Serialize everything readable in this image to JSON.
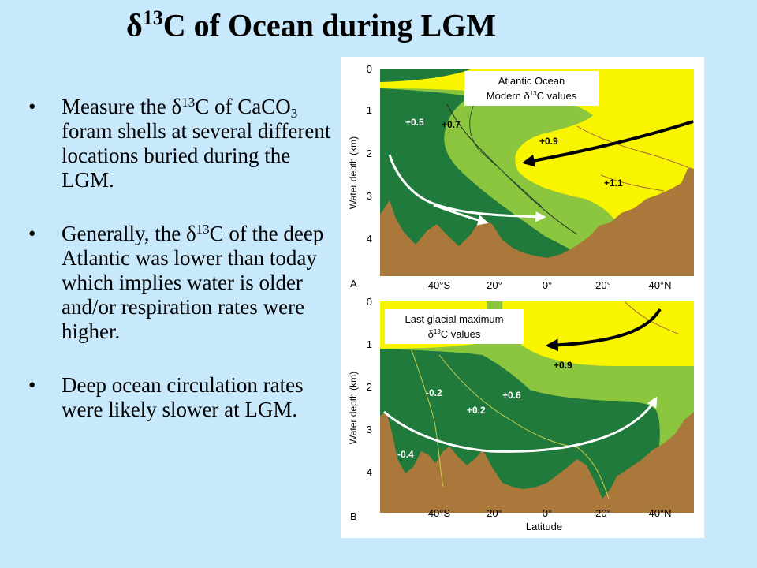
{
  "slide": {
    "title_delta": "δ",
    "title_sup": "13",
    "title_rest": "C of Ocean during LGM"
  },
  "bullets": [
    {
      "p1": "Measure the ",
      "delta": "δ",
      "sup": "13",
      "p2": "C of CaCO",
      "sub": "3",
      "p3": " foram shells at several different locations buried during the LGM."
    },
    {
      "p1": "Generally, the ",
      "delta": "δ",
      "sup": "13",
      "p2": "C of the deep Atlantic was lower than today which implies water is older and/or respiration rates were higher."
    },
    {
      "text": "Deep ocean circulation rates were likely slower at LGM."
    }
  ],
  "figure": {
    "y_axis_label": "Water depth (km)",
    "x_axis_label": "Latitude",
    "depth_ticks": [
      "0",
      "1",
      "2",
      "3",
      "4"
    ],
    "lat_ticks": [
      "40°S",
      "20°",
      "0°",
      "20°",
      "40°N"
    ],
    "colors": {
      "yellow": "#f9f400",
      "light_green": "#8cc63f",
      "dark_green": "#1f7a3c",
      "sediment": "#a9783a",
      "arrow_black": "#000000",
      "arrow_white": "#ffffff"
    },
    "panel_a": {
      "letter": "A",
      "legend_line1": "Atlantic Ocean",
      "legend_line2_pre": "Modern ",
      "legend_delta": "δ",
      "legend_sup": "13",
      "legend_line2_post": "C values",
      "labels": [
        "+0.5",
        "+0.7",
        "+0.9",
        "+1.1"
      ]
    },
    "panel_b": {
      "letter": "B",
      "legend_line1": "Last glacial maximum",
      "legend_delta": "δ",
      "legend_sup": "13",
      "legend_line2_post": "C values",
      "labels": [
        "+0.9",
        "-0.2",
        "+0.6",
        "+0.2",
        "-0.4"
      ]
    }
  }
}
